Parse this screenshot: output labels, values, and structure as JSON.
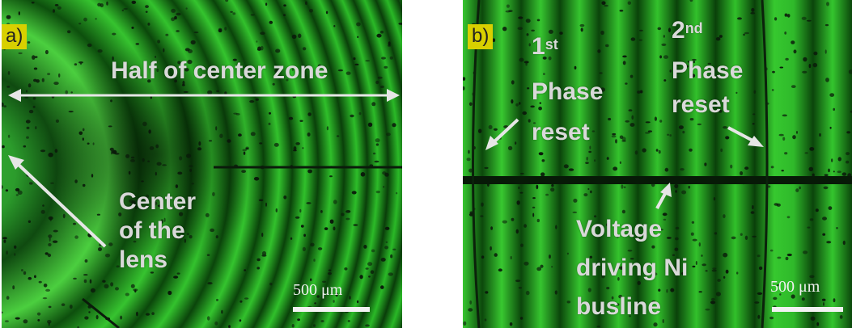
{
  "panel_a": {
    "tag": "a)",
    "label_half_zone": "Half of center zone",
    "label_center": [
      "Center",
      "of the",
      "lens"
    ],
    "scale_label": "500 μm"
  },
  "panel_b": {
    "tag": "b)",
    "label_first": {
      "num": "1",
      "sup": "st",
      "line2": "Phase",
      "line3": "reset"
    },
    "label_second": {
      "num": "2",
      "sup": "nd",
      "line2": "Phase",
      "line3": "reset"
    },
    "label_busline": [
      "Voltage",
      "driving Ni",
      "busline"
    ],
    "scale_label": "500 μm"
  },
  "colors": {
    "fringe_bright": "#2fc42f",
    "fringe_dark": "#0a4a0a",
    "label_text": "#d9d9d9",
    "tag_bg": "#d8d000"
  }
}
